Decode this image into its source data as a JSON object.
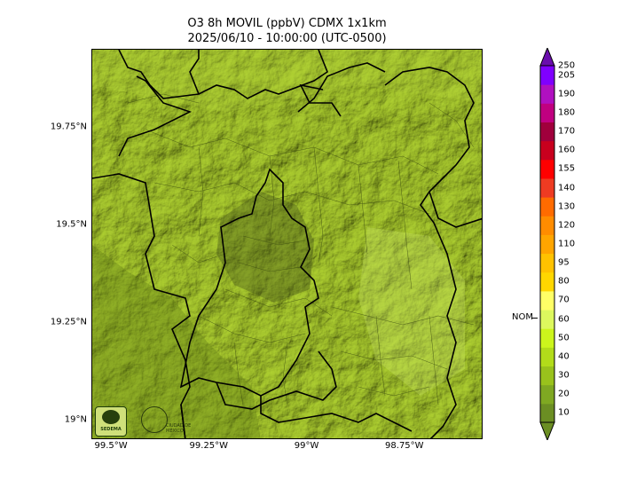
{
  "title_line1": "O3 8h MOVIL (ppbV) CDMX 1x1km",
  "title_line2": "2025/06/10 - 10:00:00 (UTC-0500)",
  "lat_labels": [
    {
      "text": "19.75°N",
      "lat": 19.75
    },
    {
      "text": "19.5°N",
      "lat": 19.5
    },
    {
      "text": "19.25°N",
      "lat": 19.25
    },
    {
      "text": "19°N",
      "lat": 19.0
    }
  ],
  "lon_labels": [
    {
      "text": "99.5°W",
      "lon": -99.5
    },
    {
      "text": "99.25°W",
      "lon": -99.25
    },
    {
      "text": "99°W",
      "lon": -99.0
    },
    {
      "text": "98.75°W",
      "lon": -98.75
    }
  ],
  "map_extent": {
    "lon_min": -99.55,
    "lon_max": -98.55,
    "lat_min": 18.95,
    "lat_max": 19.95
  },
  "colorbar": {
    "levels": [
      "10",
      "20",
      "30",
      "40",
      "50",
      "60",
      "70",
      "80",
      "95",
      "110",
      "120",
      "130",
      "140",
      "155",
      "160",
      "170",
      "180",
      "190",
      "205",
      "250"
    ],
    "colors": [
      "#6b8e23",
      "#7fa822",
      "#99c21c",
      "#b2dc1a",
      "#ccf51c",
      "#ddf85e",
      "#ffff66",
      "#ffd700",
      "#ffc200",
      "#ffa500",
      "#ff8c00",
      "#ff6b00",
      "#ee3b22",
      "#ff0000",
      "#c8001e",
      "#a0003c",
      "#c00080",
      "#b010c0",
      "#8000ff",
      "#6a0dad"
    ],
    "nom_label": "NOM",
    "nom_value": 65
  },
  "logos": {
    "left": "SEDEMA",
    "right": "CIUDAD DE MÉXICO"
  },
  "colors": {
    "map_base": "#9cbd2c",
    "map_dark": "#6e8a1e",
    "map_light": "#c4e040"
  }
}
